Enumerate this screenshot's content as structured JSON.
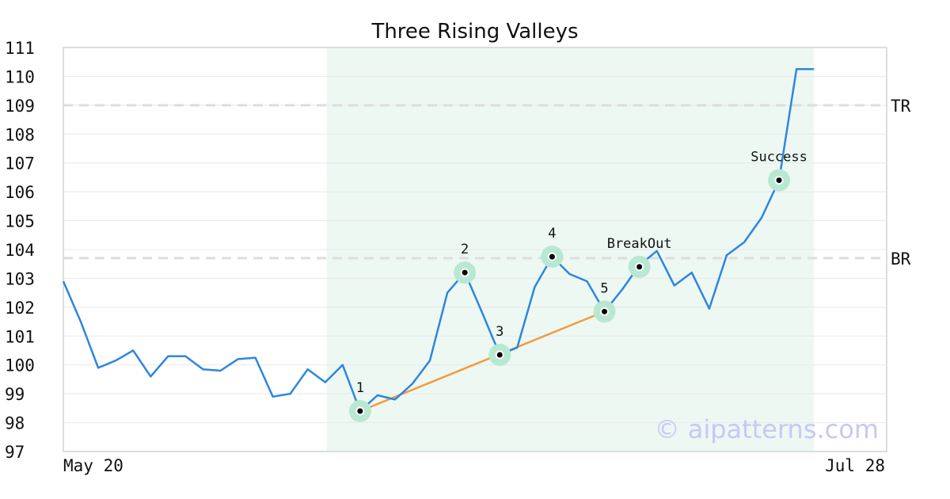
{
  "chart_data": {
    "type": "line",
    "title": "Three Rising Valleys",
    "xlabel": "",
    "ylabel": "",
    "ylim": [
      97,
      111
    ],
    "yticks": [
      97,
      98,
      99,
      100,
      101,
      102,
      103,
      104,
      105,
      106,
      107,
      108,
      109,
      110,
      111
    ],
    "x_tick_labels": [
      "May 20",
      "Jul 28"
    ],
    "grid": true,
    "colors": {
      "line": "#2e86de",
      "trend": "#f39c3a",
      "marker_halo": "#b8e8d2",
      "pattern_region": "#edf8f3",
      "level": "#dddddd"
    },
    "series": [
      {
        "values": [
          102.9,
          101.5,
          99.9,
          100.15,
          100.5,
          99.6,
          100.3,
          100.3,
          99.85,
          99.8,
          100.2,
          100.25,
          98.9,
          99.0,
          99.85,
          99.4,
          100.0,
          98.4,
          98.95,
          98.8,
          99.35,
          100.15,
          102.5,
          103.2,
          101.8,
          100.35,
          100.6,
          102.7,
          103.75,
          103.15,
          102.9,
          101.85,
          102.6,
          103.45,
          103.95,
          102.75,
          103.2,
          101.95,
          103.8,
          104.25,
          105.1,
          106.4,
          110.25,
          110.25
        ]
      }
    ],
    "pattern_region": {
      "start_index": 15,
      "end_index": 43
    },
    "levels": [
      {
        "label": "TR",
        "value": 109.0
      },
      {
        "label": "BR",
        "value": 103.7
      }
    ],
    "trendline": {
      "from_index": 17,
      "from_value": 98.4,
      "to_index": 31,
      "to_value": 101.85
    },
    "annotations": [
      {
        "label": "1",
        "index": 17,
        "value": 98.4
      },
      {
        "label": "2",
        "index": 23,
        "value": 103.2
      },
      {
        "label": "3",
        "index": 25,
        "value": 100.35
      },
      {
        "label": "4",
        "index": 28,
        "value": 103.75
      },
      {
        "label": "5",
        "index": 31,
        "value": 101.85
      },
      {
        "label": "BreakOut",
        "index": 33,
        "value": 103.4
      },
      {
        "label": "Success",
        "index": 41,
        "value": 106.4
      }
    ],
    "watermark": "© aipatterns.com"
  }
}
